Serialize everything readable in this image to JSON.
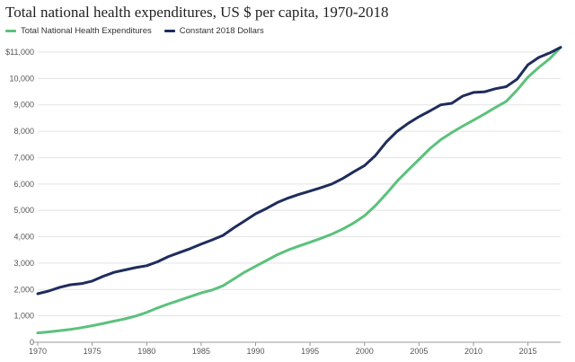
{
  "chart_data": {
    "type": "line",
    "title": "Total national health expenditures, US $ per capita, 1970-2018",
    "xlabel": "",
    "ylabel": "",
    "xlim": [
      1970,
      2018
    ],
    "ylim": [
      0,
      11000
    ],
    "grid": "horizontal",
    "legend_position": "top-left",
    "x_ticks": [
      "1970",
      "1975",
      "1980",
      "1985",
      "1990",
      "1995",
      "2000",
      "2005",
      "2010",
      "2015"
    ],
    "y_ticks": [
      "0",
      "1,000",
      "2,000",
      "3,000",
      "4,000",
      "5,000",
      "6,000",
      "7,000",
      "8,000",
      "9,000",
      "10,000",
      "$11,000"
    ],
    "x": [
      1970,
      1971,
      1972,
      1973,
      1974,
      1975,
      1976,
      1977,
      1978,
      1979,
      1980,
      1981,
      1982,
      1983,
      1984,
      1985,
      1986,
      1987,
      1988,
      1989,
      1990,
      1991,
      1992,
      1993,
      1994,
      1995,
      1996,
      1997,
      1998,
      1999,
      2000,
      2001,
      2002,
      2003,
      2004,
      2005,
      2006,
      2007,
      2008,
      2009,
      2010,
      2011,
      2012,
      2013,
      2014,
      2015,
      2016,
      2017,
      2018
    ],
    "series": [
      {
        "name": "Total National Health Expenditures",
        "color": "#5cc17c",
        "values": [
          355,
          392,
          440,
          487,
          553,
          625,
          712,
          800,
          887,
          995,
          1130,
          1300,
          1450,
          1590,
          1730,
          1870,
          1980,
          2140,
          2400,
          2660,
          2880,
          3100,
          3320,
          3500,
          3650,
          3790,
          3940,
          4100,
          4290,
          4520,
          4800,
          5180,
          5630,
          6110,
          6530,
          6930,
          7340,
          7680,
          7950,
          8190,
          8420,
          8650,
          8900,
          9130,
          9560,
          10050,
          10420,
          10750,
          11180
        ]
      },
      {
        "name": "Constant 2018 Dollars",
        "color": "#1f2d5c",
        "values": [
          1840,
          1940,
          2080,
          2180,
          2220,
          2320,
          2500,
          2650,
          2740,
          2830,
          2900,
          3050,
          3250,
          3400,
          3550,
          3720,
          3880,
          4050,
          4340,
          4600,
          4870,
          5070,
          5300,
          5470,
          5610,
          5730,
          5860,
          6000,
          6210,
          6460,
          6700,
          7080,
          7590,
          8000,
          8300,
          8550,
          8770,
          9000,
          9060,
          9330,
          9470,
          9490,
          9610,
          9690,
          9970,
          10520,
          10800,
          10970,
          11180
        ]
      }
    ]
  }
}
